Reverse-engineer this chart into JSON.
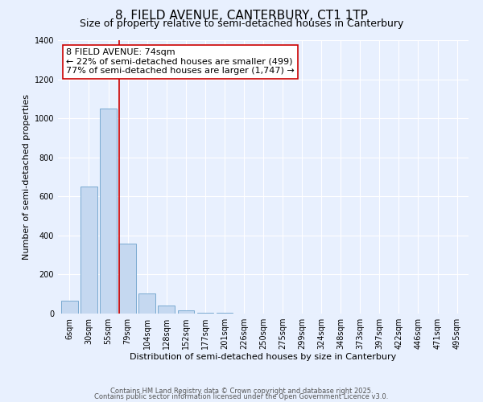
{
  "title": "8, FIELD AVENUE, CANTERBURY, CT1 1TP",
  "subtitle": "Size of property relative to semi-detached houses in Canterbury",
  "xlabel": "Distribution of semi-detached houses by size in Canterbury",
  "ylabel": "Number of semi-detached properties",
  "bar_labels": [
    "6sqm",
    "30sqm",
    "55sqm",
    "79sqm",
    "104sqm",
    "128sqm",
    "152sqm",
    "177sqm",
    "201sqm",
    "226sqm",
    "250sqm",
    "275sqm",
    "299sqm",
    "324sqm",
    "348sqm",
    "373sqm",
    "397sqm",
    "422sqm",
    "446sqm",
    "471sqm",
    "495sqm"
  ],
  "bar_values": [
    65,
    650,
    1050,
    360,
    105,
    40,
    15,
    5,
    3,
    0,
    0,
    0,
    0,
    0,
    0,
    0,
    0,
    0,
    0,
    0,
    0
  ],
  "bar_color": "#c5d8f0",
  "bar_edge_color": "#7aaad0",
  "background_color": "#e8f0fe",
  "grid_color": "#ffffff",
  "annotation_title": "8 FIELD AVENUE: 74sqm",
  "annotation_line1": "← 22% of semi-detached houses are smaller (499)",
  "annotation_line2": "77% of semi-detached houses are larger (1,747) →",
  "annotation_box_color": "#ffffff",
  "annotation_border_color": "#cc0000",
  "vline_color": "#cc0000",
  "vline_bar_index": 3,
  "ylim": [
    0,
    1400
  ],
  "yticks": [
    0,
    200,
    400,
    600,
    800,
    1000,
    1200,
    1400
  ],
  "footer1": "Contains HM Land Registry data © Crown copyright and database right 2025.",
  "footer2": "Contains public sector information licensed under the Open Government Licence v3.0.",
  "title_fontsize": 11,
  "subtitle_fontsize": 9,
  "axis_label_fontsize": 8,
  "tick_fontsize": 7,
  "annotation_fontsize": 8,
  "footer_fontsize": 6
}
